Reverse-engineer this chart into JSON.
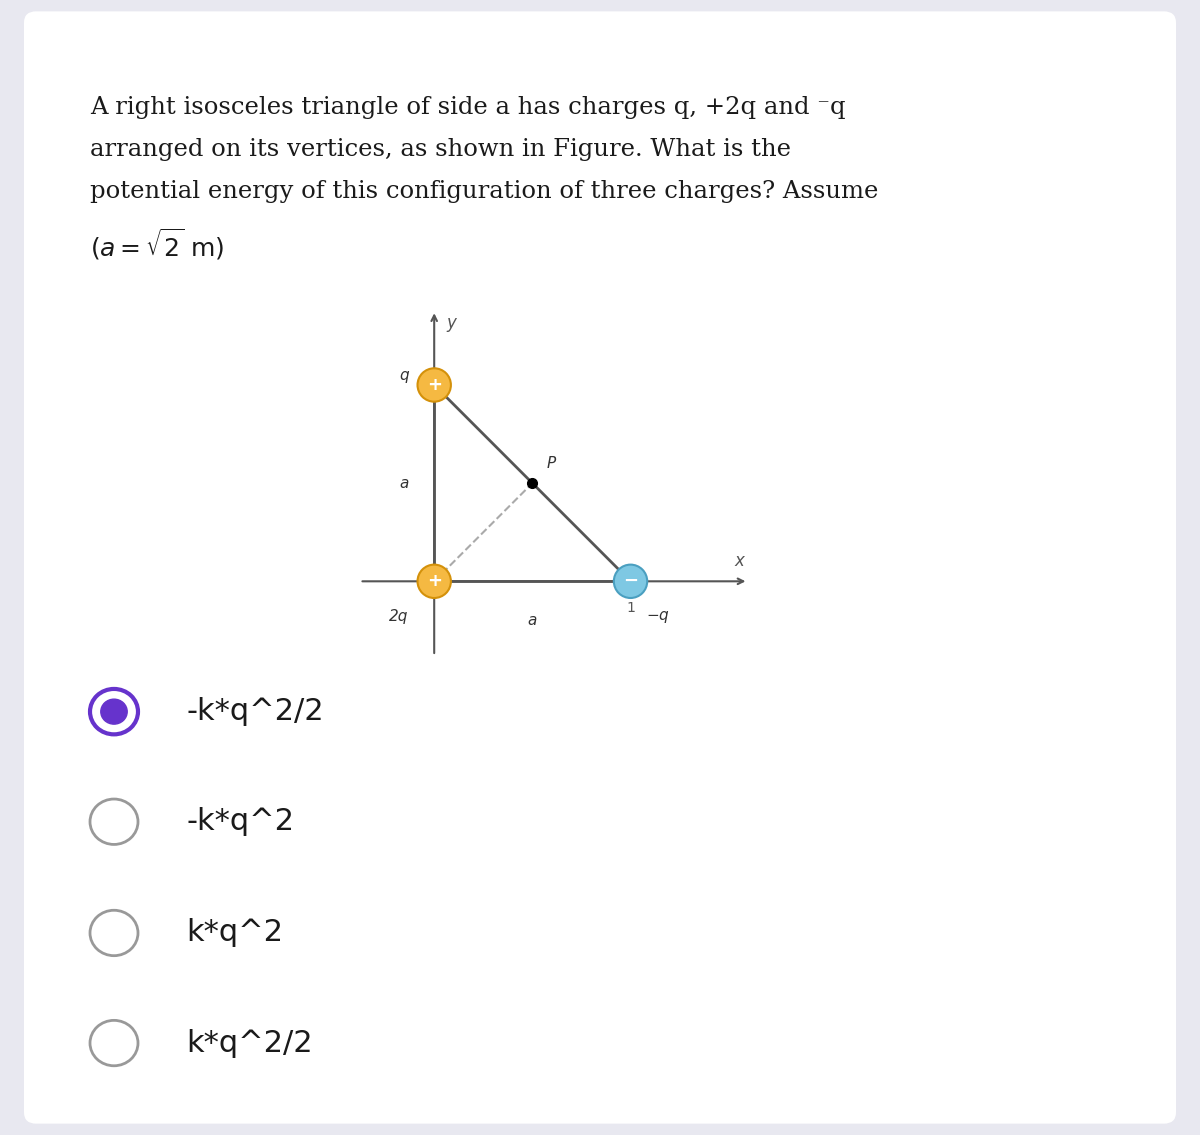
{
  "bg_color": "#e8e8f0",
  "card_color": "#ffffff",
  "question_lines": [
    "A right isosceles triangle of side a has charges q, +2q and ⁻q",
    "arranged on its vertices, as shown in Figure. What is the",
    "potential energy of this configuration of three charges? Assume"
  ],
  "question_line4_sqrt": "2",
  "question_line4_end": " m)",
  "options": [
    "-k*q^2/2",
    "-k*q^2",
    "k*q^2",
    "k*q^2/2"
  ],
  "selected_option": 0,
  "selected_color": "#6633cc",
  "unselected_color": "#999999",
  "triangle": {
    "color_2q": "#f5b942",
    "color_q": "#f5b942",
    "color_neg_q": "#7ec8e3",
    "edge_2q": "#d4910a",
    "edge_q": "#d4910a",
    "edge_neg_q": "#4a9fc0",
    "triangle_line_color": "#555555",
    "dashed_line_color": "#aaaaaa",
    "axis_color": "#555555"
  }
}
